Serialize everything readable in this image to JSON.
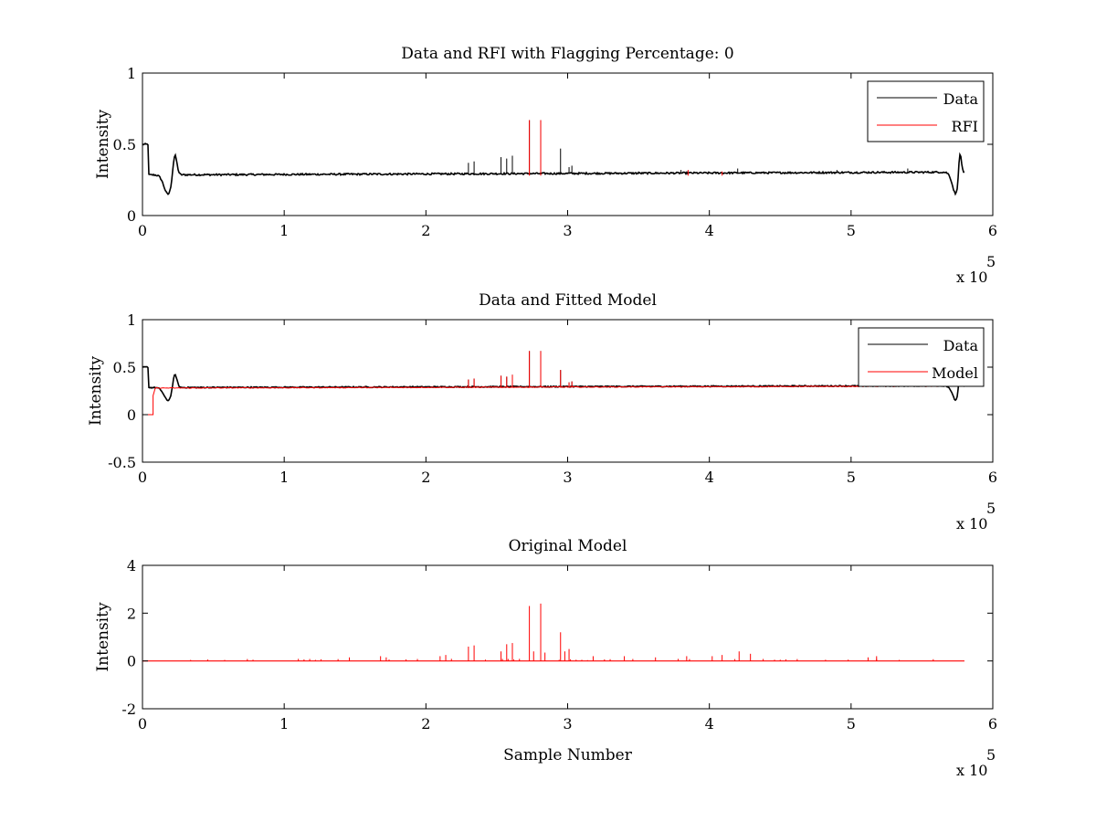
{
  "chart_data": [
    {
      "type": "line",
      "title": "Data and RFI with Flagging Percentage: 0",
      "xlabel": "",
      "ylabel": "Intensity",
      "xlim": [
        0,
        600000
      ],
      "ylim": [
        0,
        1
      ],
      "x_ticks": [
        0,
        1,
        2,
        3,
        4,
        5,
        6
      ],
      "y_ticks": [
        "0",
        "0.5",
        "1"
      ],
      "x_tick_values": [
        0,
        100000,
        200000,
        300000,
        400000,
        500000,
        600000
      ],
      "y_tick_values": [
        0,
        0.5,
        1
      ],
      "exponent_label": "x 10",
      "exponent_power": "5",
      "legend_position": "top-right",
      "grid": false,
      "series": [
        {
          "name": "Data",
          "color": "#000000",
          "kind": "signal",
          "x_start": 0,
          "x_end": 580000,
          "baseline_start": 0.285,
          "baseline_end": 0.305,
          "noise": 0.006,
          "features": [
            {
              "type": "edge",
              "x": 0,
              "x_end": 4000,
              "value": 0.5
            },
            {
              "type": "dip",
              "x": 18000,
              "width": 4000,
              "value": 0.15
            },
            {
              "type": "bump",
              "x": 23000,
              "width": 2000,
              "value": 0.42
            },
            {
              "type": "dip",
              "x": 574000,
              "width": 3500,
              "value": 0.15
            },
            {
              "type": "bump",
              "x": 577000,
              "width": 1500,
              "value": 0.43
            }
          ],
          "spikes": [
            {
              "x": 210000,
              "value": 0.3
            },
            {
              "x": 230000,
              "value": 0.37
            },
            {
              "x": 234000,
              "value": 0.38
            },
            {
              "x": 253000,
              "value": 0.41
            },
            {
              "x": 257000,
              "value": 0.4
            },
            {
              "x": 261000,
              "value": 0.42
            },
            {
              "x": 273000,
              "value": 0.67
            },
            {
              "x": 281000,
              "value": 0.67
            },
            {
              "x": 295000,
              "value": 0.47
            },
            {
              "x": 301000,
              "value": 0.34
            },
            {
              "x": 303000,
              "value": 0.35
            },
            {
              "x": 320000,
              "value": 0.3
            },
            {
              "x": 350000,
              "value": 0.31
            },
            {
              "x": 380000,
              "value": 0.32
            },
            {
              "x": 420000,
              "value": 0.33
            },
            {
              "x": 490000,
              "value": 0.32
            },
            {
              "x": 540000,
              "value": 0.33
            }
          ]
        },
        {
          "name": "RFI",
          "color": "#ff0000",
          "kind": "spikes",
          "baseline": 0.28,
          "spikes": [
            {
              "x": 273000,
              "value": 0.67
            },
            {
              "x": 281000,
              "value": 0.67
            },
            {
              "x": 385000,
              "value": 0.32
            },
            {
              "x": 409000,
              "value": 0.31
            }
          ]
        }
      ]
    },
    {
      "type": "line",
      "title": "Data and Fitted Model",
      "xlabel": "",
      "ylabel": "Intensity",
      "xlim": [
        0,
        600000
      ],
      "ylim": [
        -0.5,
        1
      ],
      "x_ticks": [
        0,
        1,
        2,
        3,
        4,
        5,
        6
      ],
      "y_ticks": [
        "-0.5",
        "0",
        "0.5",
        "1"
      ],
      "x_tick_values": [
        0,
        100000,
        200000,
        300000,
        400000,
        500000,
        600000
      ],
      "y_tick_values": [
        -0.5,
        0,
        0.5,
        1
      ],
      "exponent_label": "x 10",
      "exponent_power": "5",
      "legend_position": "top-right",
      "grid": false,
      "series": [
        {
          "name": "Data",
          "color": "#000000",
          "kind": "signal",
          "x_start": 0,
          "x_end": 580000,
          "baseline_start": 0.285,
          "baseline_end": 0.305,
          "noise": 0.006,
          "features": [
            {
              "type": "edge",
              "x": 0,
              "x_end": 4000,
              "value": 0.5
            },
            {
              "type": "dip",
              "x": 18000,
              "width": 4000,
              "value": 0.15
            },
            {
              "type": "bump",
              "x": 23000,
              "width": 2000,
              "value": 0.42
            },
            {
              "type": "dip",
              "x": 574000,
              "width": 3500,
              "value": 0.15
            },
            {
              "type": "bump",
              "x": 577000,
              "width": 1500,
              "value": 0.43
            }
          ],
          "spikes": [
            {
              "x": 230000,
              "value": 0.37
            },
            {
              "x": 234000,
              "value": 0.38
            },
            {
              "x": 253000,
              "value": 0.41
            },
            {
              "x": 257000,
              "value": 0.4
            },
            {
              "x": 261000,
              "value": 0.42
            },
            {
              "x": 273000,
              "value": 0.67
            },
            {
              "x": 281000,
              "value": 0.67
            },
            {
              "x": 295000,
              "value": 0.47
            },
            {
              "x": 301000,
              "value": 0.34
            },
            {
              "x": 303000,
              "value": 0.35
            }
          ]
        },
        {
          "name": "Model",
          "color": "#ff0000",
          "kind": "model",
          "step_points": [
            [
              0,
              0
            ],
            [
              7500,
              0
            ],
            [
              7500,
              0.2
            ],
            [
              9000,
              0.28
            ]
          ],
          "x_end": 565000,
          "baseline_start": 0.28,
          "baseline_end": 0.3,
          "spikes": [
            {
              "x": 230000,
              "value": 0.37
            },
            {
              "x": 234000,
              "value": 0.38
            },
            {
              "x": 253000,
              "value": 0.41
            },
            {
              "x": 257000,
              "value": 0.4
            },
            {
              "x": 261000,
              "value": 0.42
            },
            {
              "x": 273000,
              "value": 0.67
            },
            {
              "x": 281000,
              "value": 0.67
            },
            {
              "x": 295000,
              "value": 0.47
            },
            {
              "x": 301000,
              "value": 0.34
            },
            {
              "x": 303000,
              "value": 0.35
            }
          ]
        }
      ]
    },
    {
      "type": "line",
      "title": "Original Model",
      "xlabel": "Sample Number",
      "ylabel": "Intensity",
      "xlim": [
        0,
        600000
      ],
      "ylim": [
        -2,
        4
      ],
      "x_ticks": [
        0,
        1,
        2,
        3,
        4,
        5,
        6
      ],
      "y_ticks": [
        "-2",
        "0",
        "2",
        "4"
      ],
      "x_tick_values": [
        0,
        100000,
        200000,
        300000,
        400000,
        500000,
        600000
      ],
      "y_tick_values": [
        -2,
        0,
        2,
        4
      ],
      "exponent_label": "x 10",
      "exponent_power": "5",
      "grid": false,
      "series": [
        {
          "color": "#ff0000",
          "kind": "spikes",
          "x_start": 0,
          "x_end": 580000,
          "baseline": 0,
          "spikes": [
            {
              "x": 230000,
              "value": 0.6
            },
            {
              "x": 234000,
              "value": 0.65
            },
            {
              "x": 253000,
              "value": 0.4
            },
            {
              "x": 257000,
              "value": 0.7
            },
            {
              "x": 261000,
              "value": 0.75
            },
            {
              "x": 273000,
              "value": 2.3
            },
            {
              "x": 281000,
              "value": 2.4
            },
            {
              "x": 295000,
              "value": 1.2
            },
            {
              "x": 301000,
              "value": 0.5
            },
            {
              "x": 276000,
              "value": 0.4
            },
            {
              "x": 284000,
              "value": 0.35
            },
            {
              "x": 298000,
              "value": 0.4
            },
            {
              "x": 146000,
              "value": 0.15
            },
            {
              "x": 168000,
              "value": 0.2
            },
            {
              "x": 172000,
              "value": 0.15
            },
            {
              "x": 210000,
              "value": 0.2
            },
            {
              "x": 214000,
              "value": 0.25
            },
            {
              "x": 318000,
              "value": 0.2
            },
            {
              "x": 340000,
              "value": 0.2
            },
            {
              "x": 362000,
              "value": 0.15
            },
            {
              "x": 384000,
              "value": 0.2
            },
            {
              "x": 402000,
              "value": 0.2
            },
            {
              "x": 409000,
              "value": 0.25
            },
            {
              "x": 421000,
              "value": 0.4
            },
            {
              "x": 429000,
              "value": 0.3
            },
            {
              "x": 512000,
              "value": 0.15
            },
            {
              "x": 518000,
              "value": 0.2
            }
          ]
        }
      ]
    }
  ]
}
